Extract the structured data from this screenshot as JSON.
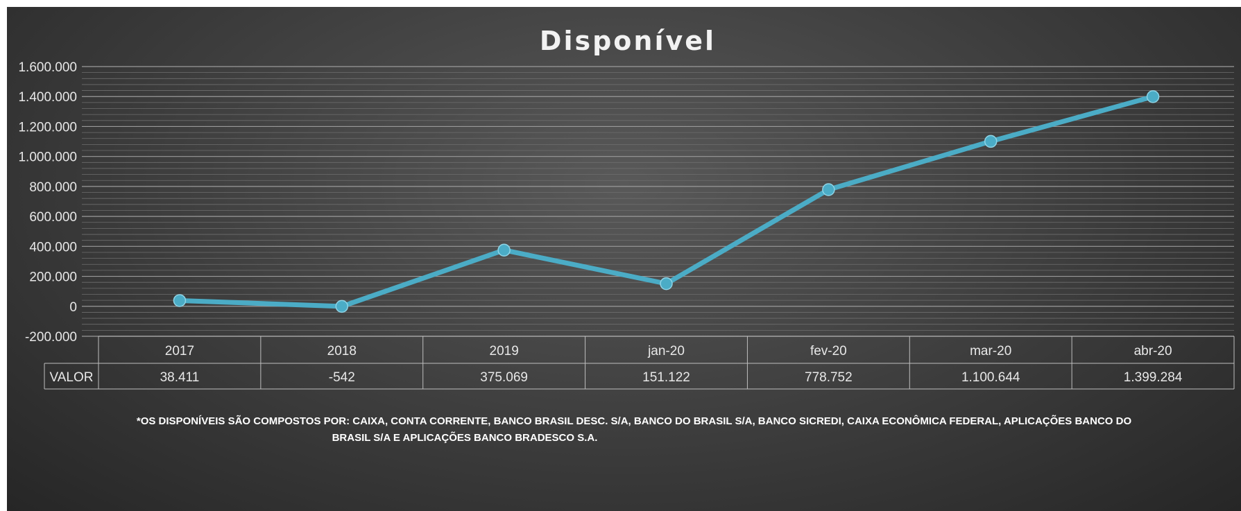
{
  "chart_data": {
    "type": "line",
    "title": "Disponível",
    "categories": [
      "2017",
      "2018",
      "2019",
      "jan-20",
      "fev-20",
      "mar-20",
      "abr-20"
    ],
    "series": [
      {
        "name": "VALOR",
        "values": [
          38411,
          -542,
          375069,
          151122,
          778752,
          1100644,
          1399284
        ],
        "labels": [
          "38.411",
          "-542",
          "375.069",
          "151.122",
          "778.752",
          "1.100.644",
          "1.399.284"
        ],
        "color": "#4bacc6"
      }
    ],
    "ylim": [
      -200000,
      1600000
    ],
    "y_ticks": [
      -200000,
      0,
      200000,
      400000,
      600000,
      800000,
      1000000,
      1200000,
      1400000,
      1600000
    ],
    "y_tick_labels": [
      "-200.000",
      "0",
      "200.000",
      "400.000",
      "600.000",
      "800.000",
      "1.000.000",
      "1.200.000",
      "1.400.000",
      "1.600.000"
    ],
    "grid": true,
    "data_table": true,
    "xlabel": "",
    "ylabel": "",
    "footnote": {
      "line1": "*OS DISPONÍVEIS SÃO COMPOSTOS POR: CAIXA,  CONTA CORRENTE, BANCO BRASIL DESC. S/A, BANCO DO BRASIL S/A, BANCO SICREDI, CAIXA ECONÔMICA FEDERAL, APLICAÇÕES BANCO DO",
      "line2": "BRASIL S/A E APLICAÇÕES BANCO BRADESCO S.A."
    }
  }
}
